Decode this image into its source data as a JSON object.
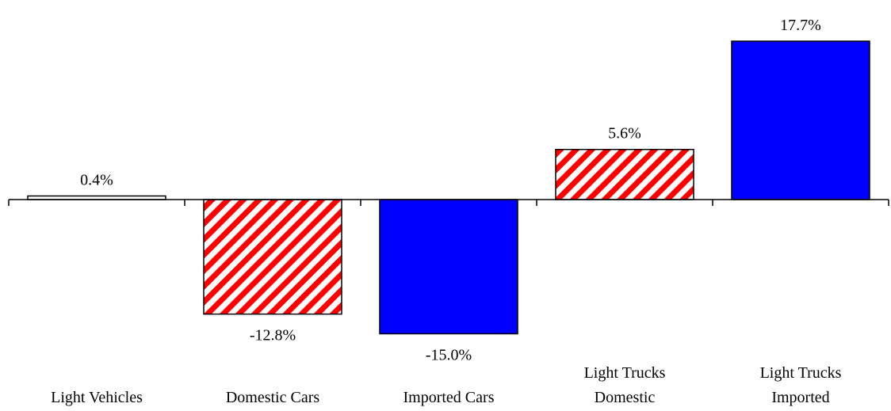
{
  "chart_data": {
    "type": "bar",
    "categories": [
      [
        "Light Vehicles"
      ],
      [
        "Domestic Cars"
      ],
      [
        "Imported Cars"
      ],
      [
        "Light Trucks",
        "Domestic"
      ],
      [
        "Light Trucks",
        "Imported"
      ]
    ],
    "values": [
      0.4,
      -12.8,
      -15.0,
      5.6,
      17.7
    ],
    "value_labels": [
      "0.4%",
      "-12.8%",
      "-15.0%",
      "5.6%",
      "17.7%"
    ],
    "bar_styles": [
      "white",
      "hatched-red",
      "blue",
      "hatched-red",
      "blue"
    ],
    "title": "",
    "xlabel": "",
    "ylabel": "",
    "ylim": [
      -15.0,
      17.7
    ],
    "grid": false,
    "legend": "none"
  },
  "colors": {
    "blue": "#0000ff",
    "hatch_red": "#ff0000",
    "background": "#ffffff",
    "outline": "#000000"
  }
}
